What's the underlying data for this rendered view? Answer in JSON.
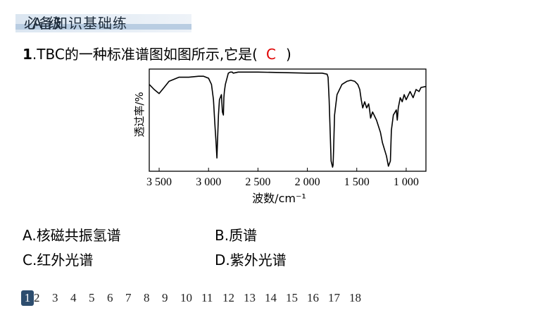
{
  "section": {
    "level": "A 级",
    "title": "必备知识基础练"
  },
  "question": {
    "number": "1",
    "text": ".TBC的一种标准谱图如图所示,它是(",
    "answer": "C",
    "close": ")"
  },
  "chart_data": {
    "type": "line",
    "title": "",
    "ylabel": "透过率/%",
    "xlabel": "波数/cm⁻¹",
    "x_reversed": true,
    "xlim": [
      3600,
      800
    ],
    "ylim": [
      0,
      100
    ],
    "grid": false,
    "xticks": [
      3500,
      3000,
      2500,
      2000,
      1500,
      1000
    ],
    "xtick_labels": [
      "3 500",
      "3 000",
      "2 500",
      "2 000",
      "1 500",
      "1 000"
    ],
    "series": [
      {
        "x": [
          3600,
          3550,
          3500,
          3450,
          3400,
          3300,
          3200,
          3100,
          3050,
          3000,
          2970,
          2950,
          2935,
          2925,
          2915,
          2900,
          2890,
          2870,
          2860,
          2850,
          2845,
          2840,
          2830,
          2800,
          2780,
          2760,
          2750,
          2700,
          2500,
          2000,
          1850,
          1800,
          1790,
          1780,
          1770,
          1760,
          1745,
          1740,
          1735,
          1725,
          1700,
          1650,
          1600,
          1560,
          1520,
          1490,
          1470,
          1455,
          1440,
          1420,
          1400,
          1380,
          1370,
          1360,
          1340,
          1300,
          1260,
          1240,
          1200,
          1180,
          1160,
          1150,
          1130,
          1100,
          1090,
          1080,
          1060,
          1040,
          1020,
          1000,
          960,
          930,
          900,
          870,
          850,
          800
        ],
        "y": [
          85,
          80,
          76,
          82,
          88,
          92,
          92,
          93,
          93,
          91,
          85,
          70,
          45,
          30,
          13,
          55,
          70,
          75,
          58,
          55,
          72,
          78,
          85,
          96,
          97,
          97,
          96,
          97,
          97,
          96,
          96,
          95,
          92,
          70,
          40,
          10,
          4,
          6,
          20,
          55,
          75,
          85,
          88,
          89,
          88,
          85,
          80,
          70,
          62,
          68,
          62,
          66,
          60,
          52,
          58,
          50,
          38,
          28,
          15,
          5,
          10,
          40,
          55,
          60,
          50,
          62,
          72,
          68,
          75,
          70,
          78,
          72,
          80,
          78,
          82,
          83
        ]
      }
    ]
  },
  "options": [
    {
      "label": "A.核磁共振氢谱"
    },
    {
      "label": "B.质谱"
    },
    {
      "label": "C.红外光谱"
    },
    {
      "label": "D.紫外光谱"
    }
  ],
  "pager": {
    "current": "1",
    "pages": [
      "1",
      "2",
      "3",
      "4",
      "5",
      "6",
      "7",
      "8",
      "9",
      "10",
      "11",
      "12",
      "13",
      "14",
      "15",
      "16",
      "17",
      "18"
    ]
  }
}
